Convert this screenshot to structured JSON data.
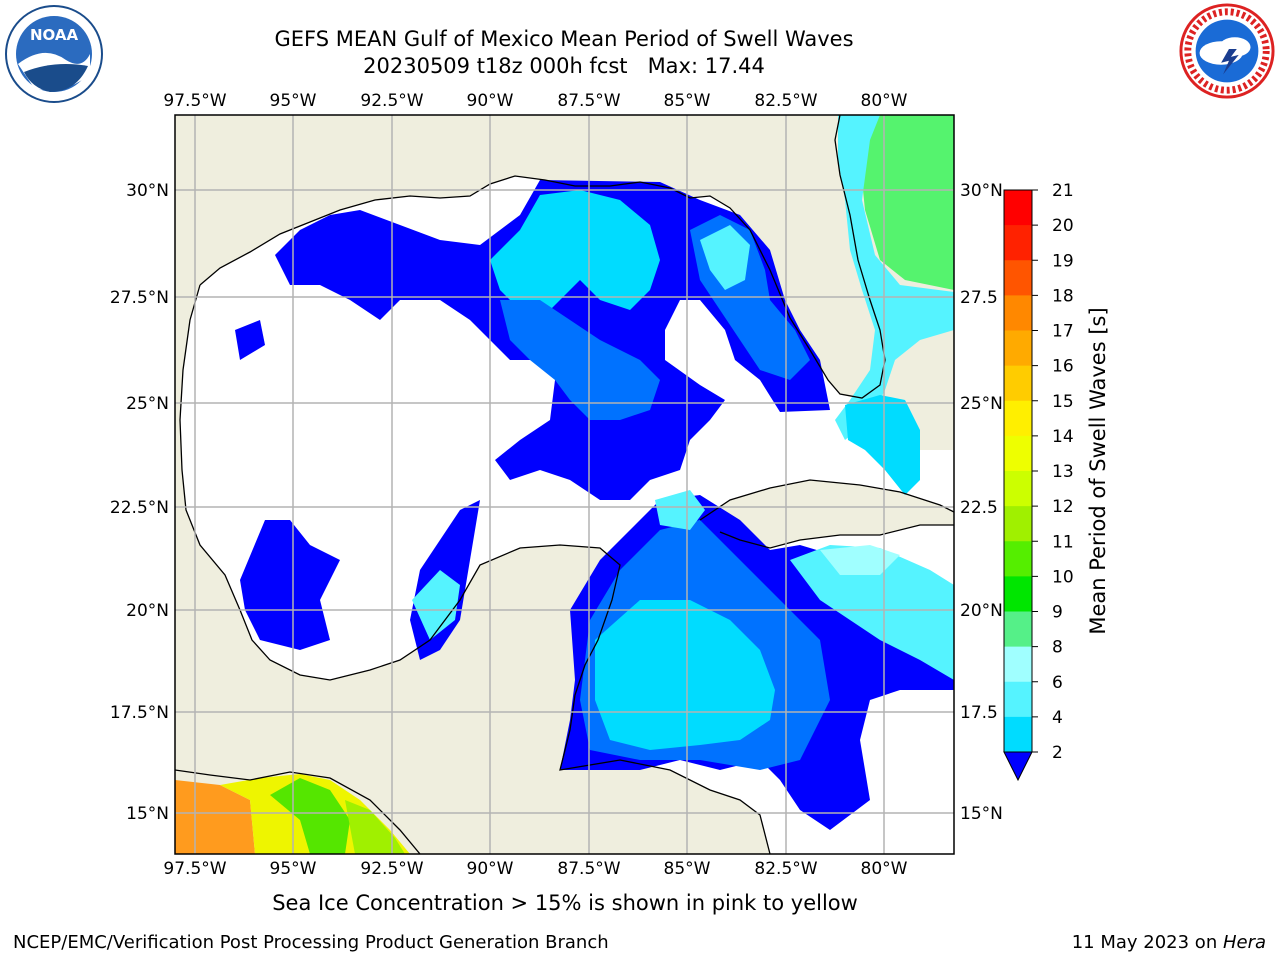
{
  "title_line1": "GEFS MEAN Gulf of Mexico Mean Period of Swell Waves",
  "title_line2": "20230509 t18z 000h fcst   Max: 17.44",
  "caption": "Sea Ice Concentration > 15% is shown in pink to yellow",
  "footer_left": "NCEP/EMC/Verification Post Processing Product Generation Branch",
  "footer_right_date": "11 May 2023 on ",
  "footer_right_host": "Hera",
  "logos": {
    "left": "noaa-logo",
    "right": "nws-logo"
  },
  "map": {
    "lon_labels": [
      "97.5°W",
      "95°W",
      "92.5°W",
      "90°W",
      "87.5°W",
      "85°W",
      "82.5°W",
      "80°W"
    ],
    "lat_labels_left": [
      "30°N",
      "27.5°N",
      "25°N",
      "22.5°N",
      "20°N",
      "17.5°N",
      "15°N"
    ],
    "lat_labels_right": [
      "30°N",
      "27.5",
      "25°N",
      "22.5",
      "20°N",
      "17.5",
      "15°N"
    ],
    "colors": {
      "land": "#efeede",
      "grid": "#b3b3b3",
      "coast": "#000000"
    }
  },
  "colorbar": {
    "label": "Mean Period of Swell Waves [s]",
    "ticks": [
      "2",
      "4",
      "6",
      "8",
      "9",
      "10",
      "11",
      "12",
      "13",
      "14",
      "15",
      "16",
      "17",
      "18",
      "19",
      "20",
      "21"
    ],
    "colors": [
      "#0000ff",
      "#0072ff",
      "#00dcff",
      "#55f3ff",
      "#a0ffff",
      "#55f088",
      "#00e600",
      "#55ee00",
      "#a0f000",
      "#ccff00",
      "#eeff00",
      "#ffef00",
      "#ffcc00",
      "#ffaa00",
      "#ff8800",
      "#ff5500",
      "#ff2200",
      "#ff0000"
    ]
  }
}
